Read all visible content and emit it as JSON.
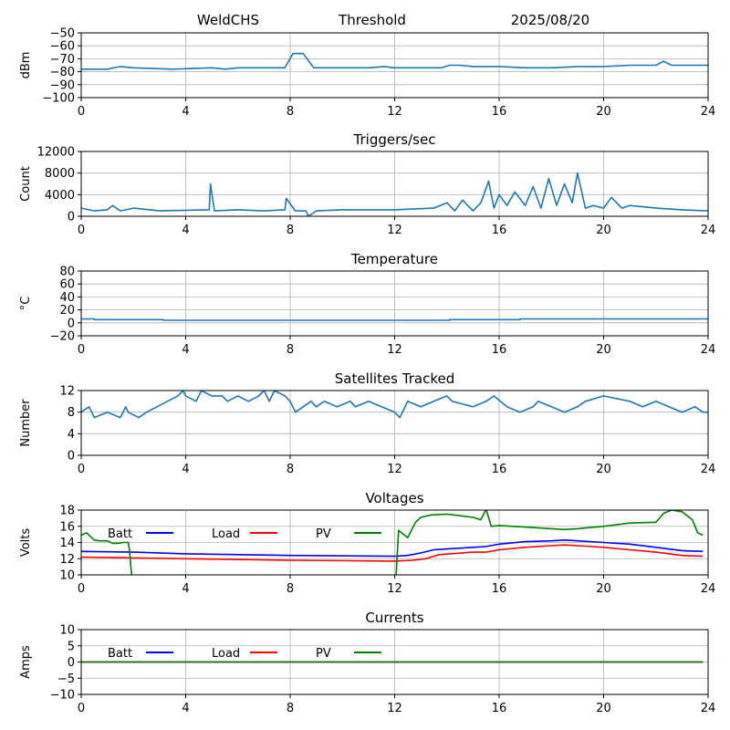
{
  "header": {
    "left": "WeldCHS",
    "middle": "Threshold",
    "right": "2025/08/20"
  },
  "chart_data": [
    {
      "type": "line",
      "title": "",
      "ylabel": "dBm",
      "xlim": [
        0,
        24
      ],
      "ylim": [
        -100,
        -50
      ],
      "xticks": [
        0,
        4,
        8,
        12,
        16,
        20,
        24
      ],
      "yticks": [
        -100,
        -90,
        -80,
        -70,
        -60,
        -50
      ],
      "grid": true,
      "series": [
        {
          "color": "#1f77b4",
          "x": [
            0,
            1,
            1.5,
            2,
            3.5,
            5,
            5.5,
            6,
            7,
            7.8,
            8.1,
            8.5,
            8.9,
            9.5,
            11,
            11.6,
            12,
            13,
            13.8,
            14.1,
            14.5,
            15,
            16,
            17,
            18,
            19,
            20,
            21,
            22,
            22.3,
            22.6,
            23,
            24
          ],
          "y": [
            -78,
            -78,
            -76,
            -77,
            -78,
            -77,
            -78,
            -77,
            -77,
            -77,
            -66,
            -66,
            -77,
            -77,
            -77,
            -76,
            -77,
            -77,
            -77,
            -75,
            -75,
            -76,
            -76,
            -77,
            -77,
            -76,
            -76,
            -75,
            -75,
            -72,
            -75,
            -75,
            -75
          ]
        }
      ]
    },
    {
      "type": "line",
      "title": "Triggers/sec",
      "ylabel": "Count",
      "xlim": [
        0,
        24
      ],
      "ylim": [
        0,
        12000
      ],
      "xticks": [
        0,
        4,
        8,
        12,
        16,
        20,
        24
      ],
      "yticks": [
        0,
        4000,
        8000,
        12000
      ],
      "grid": true,
      "series": [
        {
          "color": "#1f77b4",
          "x": [
            0,
            0.5,
            1,
            1.2,
            1.5,
            2,
            3,
            4.9,
            4.95,
            5.1,
            6,
            7,
            7.8,
            7.85,
            8.2,
            8.6,
            8.7,
            9,
            10,
            12,
            13.5,
            14,
            14.3,
            14.6,
            15,
            15.3,
            15.6,
            15.8,
            16,
            16.3,
            16.6,
            17,
            17.3,
            17.6,
            17.9,
            18.2,
            18.5,
            18.8,
            19,
            19.3,
            19.6,
            20,
            20.3,
            20.7,
            21,
            22,
            23,
            24
          ],
          "y": [
            1500,
            1000,
            1200,
            2000,
            1000,
            1500,
            1000,
            1200,
            6000,
            1000,
            1200,
            1000,
            1200,
            3300,
            1000,
            1000,
            0,
            1000,
            1200,
            1200,
            1500,
            2500,
            1000,
            3000,
            1000,
            2500,
            6500,
            1500,
            4000,
            2000,
            4500,
            2000,
            5500,
            1500,
            7000,
            2000,
            6000,
            2500,
            8000,
            1500,
            2000,
            1500,
            3500,
            1500,
            2000,
            1500,
            1200,
            1000
          ]
        }
      ]
    },
    {
      "type": "line",
      "title": "Temperature",
      "ylabel": "°C",
      "xlim": [
        0,
        24
      ],
      "ylim": [
        -20,
        80
      ],
      "xticks": [
        0,
        4,
        8,
        12,
        16,
        20,
        24
      ],
      "yticks": [
        -20,
        0,
        20,
        40,
        60,
        80
      ],
      "grid": true,
      "series": [
        {
          "color": "#1f77b4",
          "x": [
            0,
            0.5,
            0.5,
            3.15,
            3.15,
            14.1,
            14.1,
            16.8,
            16.8,
            24
          ],
          "y": [
            6,
            6,
            5,
            5,
            4,
            4,
            5,
            5,
            6,
            6
          ]
        }
      ]
    },
    {
      "type": "line",
      "title": "Satellites Tracked",
      "ylabel": "Number",
      "xlim": [
        0,
        24
      ],
      "ylim": [
        0,
        12
      ],
      "xticks": [
        0,
        4,
        8,
        12,
        16,
        20,
        24
      ],
      "yticks": [
        0,
        4,
        8,
        12
      ],
      "grid": true,
      "series": [
        {
          "color": "#1f77b4",
          "x": [
            0,
            0.3,
            0.4,
            0.5,
            1.0,
            1.5,
            1.7,
            1.8,
            2.2,
            2.5,
            2.9,
            3.3,
            3.7,
            3.9,
            4.0,
            4.4,
            4.6,
            5.0,
            5.4,
            5.6,
            6.0,
            6.4,
            6.8,
            7.0,
            7.2,
            7.4,
            7.8,
            8.0,
            8.2,
            8.8,
            9.0,
            9.3,
            9.8,
            10.3,
            10.5,
            11.0,
            11.5,
            12.0,
            12.2,
            12.5,
            13.0,
            13.5,
            14.0,
            14.2,
            15.0,
            15.5,
            15.8,
            16.3,
            16.8,
            17.3,
            17.5,
            18.0,
            18.5,
            19.0,
            19.3,
            20.0,
            21.0,
            21.5,
            22.0,
            22.5,
            23.0,
            23.5,
            23.8,
            24
          ],
          "y": [
            8,
            9,
            8,
            7,
            8,
            7,
            9,
            8,
            7,
            8,
            9,
            10,
            11,
            12,
            11,
            10,
            12,
            11,
            11,
            10,
            11,
            10,
            11,
            12,
            10,
            12,
            11,
            10,
            8,
            10,
            9,
            10,
            9,
            10,
            9,
            10,
            9,
            8,
            7,
            10,
            9,
            10,
            11,
            10,
            9,
            10,
            11,
            9,
            8,
            9,
            10,
            9,
            8,
            9,
            10,
            11,
            10,
            9,
            10,
            9,
            8,
            9,
            8,
            8
          ]
        }
      ]
    },
    {
      "type": "line",
      "title": "Voltages",
      "ylabel": "Volts",
      "xlim": [
        0,
        24
      ],
      "ylim": [
        10,
        18
      ],
      "xticks": [
        0,
        4,
        8,
        12,
        16,
        20,
        24
      ],
      "yticks": [
        10,
        12,
        14,
        16,
        18
      ],
      "grid": true,
      "legend": [
        {
          "name": "Batt",
          "color": "#0000ff"
        },
        {
          "name": "Load",
          "color": "#ff0000"
        },
        {
          "name": "PV",
          "color": "#008000"
        }
      ],
      "series": [
        {
          "name": "Batt",
          "color": "#0000ff",
          "x": [
            0,
            2,
            4,
            8,
            12,
            12.5,
            13,
            13.5,
            14,
            15,
            15.5,
            16,
            17,
            18,
            18.5,
            19,
            20,
            21,
            22,
            23,
            23.8
          ],
          "y": [
            12.9,
            12.8,
            12.6,
            12.4,
            12.3,
            12.4,
            12.7,
            13.1,
            13.2,
            13.4,
            13.5,
            13.8,
            14.1,
            14.2,
            14.3,
            14.2,
            14.0,
            13.8,
            13.4,
            13.0,
            12.9
          ]
        },
        {
          "name": "Load",
          "color": "#ff0000",
          "x": [
            0,
            2,
            4,
            8,
            12,
            12.7,
            13.2,
            13.7,
            15,
            15.5,
            16,
            17,
            18,
            18.5,
            19,
            20,
            21,
            22,
            23,
            23.8
          ],
          "y": [
            12.2,
            12.1,
            12.0,
            11.8,
            11.7,
            11.8,
            12.0,
            12.5,
            12.8,
            12.8,
            13.1,
            13.4,
            13.6,
            13.7,
            13.6,
            13.4,
            13.1,
            12.8,
            12.4,
            12.3
          ]
        },
        {
          "name": "PV",
          "color": "#008000",
          "x": [
            0,
            0.2,
            0.4,
            0.5,
            0.7,
            1.0,
            1.2,
            1.4,
            1.6,
            1.8,
            1.85,
            1.9,
            1.95,
            12.05,
            12.15,
            12.5,
            12.8,
            13.0,
            13.4,
            14.0,
            15.0,
            15.3,
            15.5,
            15.7,
            16.0,
            17.0,
            18.0,
            18.5,
            19.0,
            20.0,
            21.0,
            22.0,
            22.3,
            22.6,
            23.0,
            23.4,
            23.6,
            23.8
          ],
          "y": [
            14.9,
            15.2,
            14.6,
            14.3,
            14.2,
            14.2,
            13.9,
            13.9,
            14.0,
            14.0,
            13.0,
            11.0,
            9.5,
            9.5,
            15.5,
            14.6,
            16.5,
            17.1,
            17.4,
            17.5,
            17.1,
            16.8,
            18.1,
            16.0,
            16.1,
            15.9,
            15.7,
            15.6,
            15.7,
            16.0,
            16.4,
            16.5,
            17.6,
            18.0,
            17.8,
            16.8,
            15.2,
            14.9
          ]
        }
      ]
    },
    {
      "type": "line",
      "title": "Currents",
      "ylabel": "Amps",
      "xlim": [
        0,
        24
      ],
      "ylim": [
        -10,
        10
      ],
      "xticks": [
        0,
        4,
        8,
        12,
        16,
        20,
        24
      ],
      "yticks": [
        -10,
        -5,
        0,
        5,
        10
      ],
      "grid": true,
      "legend": [
        {
          "name": "Batt",
          "color": "#0000ff"
        },
        {
          "name": "Load",
          "color": "#ff0000"
        },
        {
          "name": "PV",
          "color": "#008000"
        }
      ],
      "series": [
        {
          "name": "Batt",
          "color": "#0000ff",
          "x": [
            0,
            23.8
          ],
          "y": [
            0,
            0
          ]
        },
        {
          "name": "Load",
          "color": "#ff0000",
          "x": [
            0,
            23.8
          ],
          "y": [
            0,
            0
          ]
        },
        {
          "name": "PV",
          "color": "#008000",
          "x": [
            0,
            23.8
          ],
          "y": [
            0,
            0
          ]
        }
      ]
    }
  ]
}
